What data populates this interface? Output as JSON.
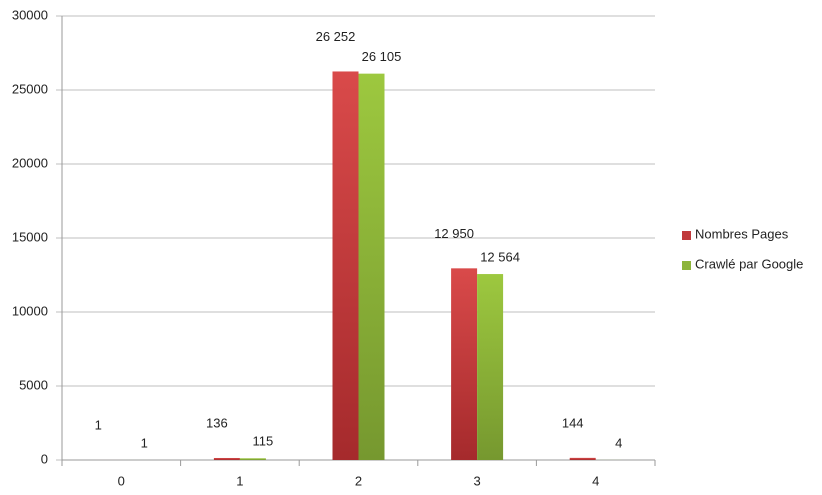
{
  "chart_data": {
    "type": "bar",
    "categories": [
      "0",
      "1",
      "2",
      "3",
      "4"
    ],
    "series": [
      {
        "name": "Nombres Pages",
        "color": "#c0393b",
        "values": [
          1,
          136,
          26252,
          12950,
          144
        ],
        "value_labels": [
          "1",
          "136",
          "26 252",
          "12 950",
          "144"
        ]
      },
      {
        "name": "Crawlé par Google",
        "color": "#8db53b",
        "values": [
          1,
          115,
          26105,
          12564,
          4
        ],
        "value_labels": [
          "1",
          "115",
          "26 105",
          "12 564",
          "4"
        ]
      }
    ],
    "ylim": [
      0,
      30000
    ],
    "yticks": [
      0,
      5000,
      10000,
      15000,
      20000,
      25000,
      30000
    ],
    "grid": true,
    "legend": "right"
  }
}
